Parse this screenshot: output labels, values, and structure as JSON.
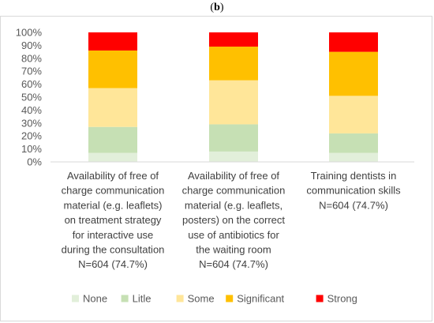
{
  "panel_label": "b",
  "chart_data": {
    "type": "bar",
    "stacked": true,
    "percent": true,
    "ylim": [
      0,
      100
    ],
    "yticks": [
      "0%",
      "10%",
      "20%",
      "30%",
      "40%",
      "50%",
      "60%",
      "70%",
      "80%",
      "90%",
      "100%"
    ],
    "categories": [
      [
        "Availability of free of",
        "charge communication",
        "material (e.g. leaflets)",
        "on treatment strategy",
        "for interactive use",
        "during the consultation",
        "N=604 (74.7%)"
      ],
      [
        "Availability of free of",
        "charge communication",
        "material (e.g. leaflets,",
        "posters) on the correct",
        "use of antibiotics for",
        "the waiting room",
        "N=604 (74.7%)"
      ],
      [
        "Training dentists in",
        "communication skills",
        "N=604 (74.7%)"
      ]
    ],
    "series": [
      {
        "name": "None",
        "color": "#e2efda",
        "values": [
          7,
          8,
          7
        ]
      },
      {
        "name": "Litle",
        "color": "#c6e0b4",
        "values": [
          20,
          21,
          15
        ]
      },
      {
        "name": "Some",
        "color": "#ffe699",
        "values": [
          30,
          34,
          29
        ]
      },
      {
        "name": "Significant",
        "color": "#ffc000",
        "values": [
          29,
          26,
          34
        ]
      },
      {
        "name": "Strong",
        "color": "#ff0000",
        "values": [
          14,
          11,
          15
        ]
      }
    ],
    "legend_position": "bottom",
    "grid": false
  }
}
